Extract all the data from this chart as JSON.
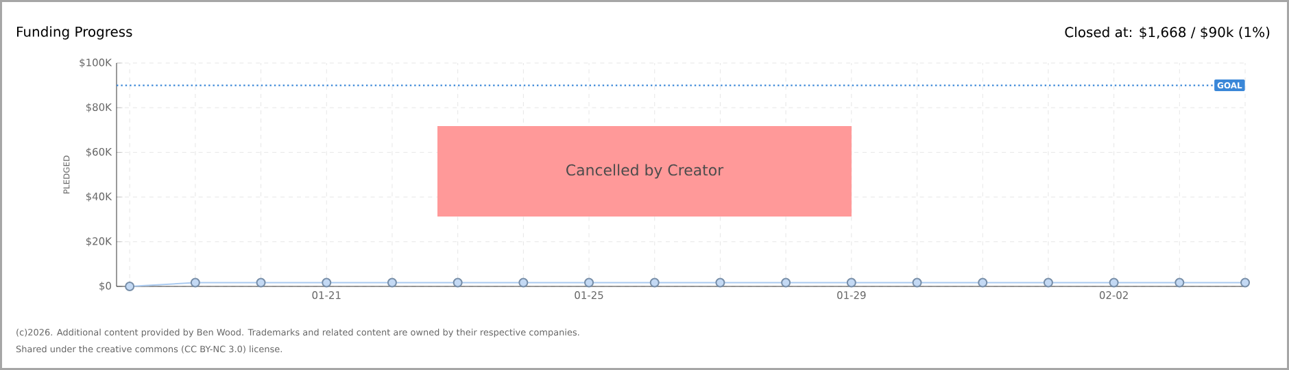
{
  "chart_data": {
    "type": "line",
    "title": "Funding Progress",
    "annotations": [
      "Closed at: $1,668 / $90k (1%)",
      "Cancelled by Creator",
      "(c)2026. Additional content provided by Ben Wood. Trademarks and related content are owned by their respective companies.",
      "Shared under the creative commons (CC BY-NC 3.0) license."
    ],
    "ylabel": "PLEDGED",
    "categories": [
      null,
      null,
      null,
      "01-21",
      null,
      null,
      null,
      "01-25",
      null,
      null,
      null,
      "01-29",
      null,
      null,
      null,
      "02-02",
      null,
      null
    ],
    "series": [
      {
        "color": "#a9c9ef",
        "values": [
          0,
          1668,
          1668,
          1668,
          1668,
          1668,
          1668,
          1668,
          1668,
          1668,
          1668,
          1668,
          1668,
          1668,
          1668,
          1668,
          1668,
          1668
        ]
      }
    ],
    "ylim": [
      0,
      100000
    ],
    "yticks": [
      {
        "value": 0,
        "label": "$0"
      },
      {
        "value": 20000,
        "label": "$20K"
      },
      {
        "value": 40000,
        "label": "$40K"
      },
      {
        "value": 60000,
        "label": "$60K"
      },
      {
        "value": 80000,
        "label": "$80K"
      },
      {
        "value": 100000,
        "label": "$100K"
      }
    ],
    "ref_lines": [
      {
        "axis": "y",
        "value": 90000,
        "label": "GOAL",
        "color": "#3a87d8",
        "line_style": "dotted"
      }
    ],
    "grid": true,
    "marker": "circle",
    "line_style": "solid"
  }
}
